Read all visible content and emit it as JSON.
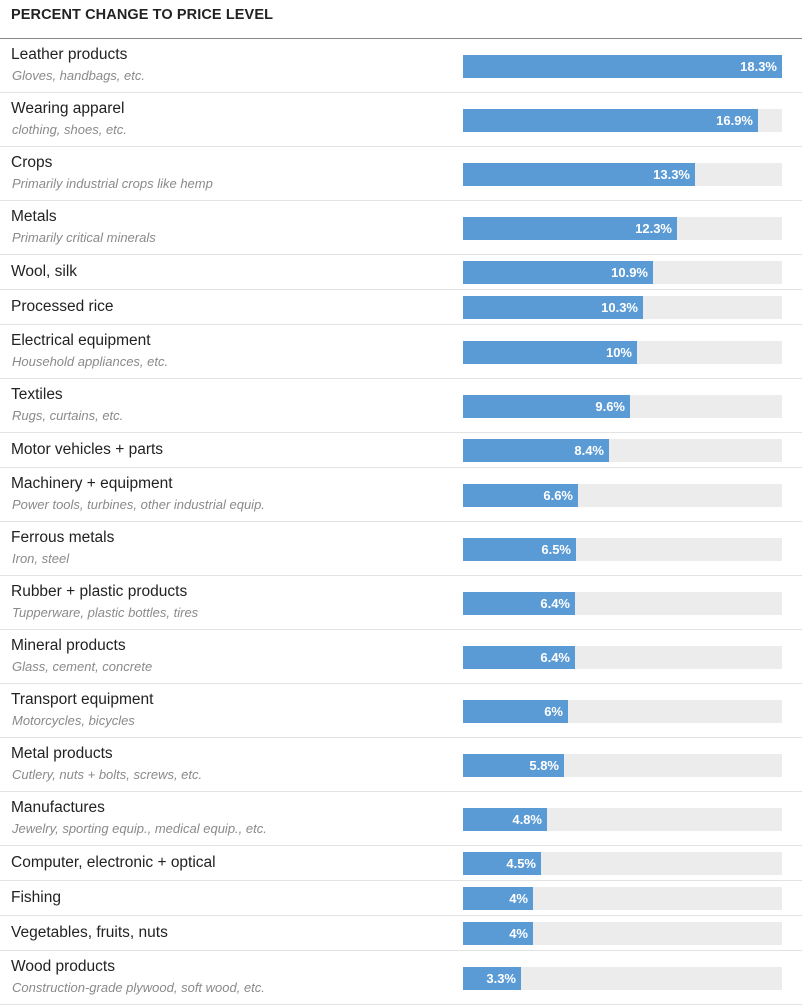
{
  "chart_data": {
    "type": "bar",
    "orientation": "horizontal",
    "title": "PERCENT CHANGE TO PRICE LEVEL",
    "xlim": [
      0,
      18.3
    ],
    "unit": "%",
    "categories": [
      {
        "label": "Leather products",
        "sublabel": "Gloves, handbags, etc.",
        "value": 18.3,
        "display": "18.3%"
      },
      {
        "label": "Wearing apparel",
        "sublabel": "clothing, shoes, etc.",
        "value": 16.9,
        "display": "16.9%"
      },
      {
        "label": "Crops",
        "sublabel": "Primarily industrial crops like hemp",
        "value": 13.3,
        "display": "13.3%"
      },
      {
        "label": "Metals",
        "sublabel": "Primarily critical minerals",
        "value": 12.3,
        "display": "12.3%"
      },
      {
        "label": "Wool, silk",
        "sublabel": "",
        "value": 10.9,
        "display": "10.9%"
      },
      {
        "label": "Processed rice",
        "sublabel": "",
        "value": 10.3,
        "display": "10.3%"
      },
      {
        "label": "Electrical equipment",
        "sublabel": "Household appliances, etc.",
        "value": 10,
        "display": "10%"
      },
      {
        "label": "Textiles",
        "sublabel": "Rugs, curtains, etc.",
        "value": 9.6,
        "display": "9.6%"
      },
      {
        "label": "Motor vehicles + parts",
        "sublabel": "",
        "value": 8.4,
        "display": "8.4%"
      },
      {
        "label": "Machinery + equipment",
        "sublabel": "Power tools, turbines, other industrial equip.",
        "value": 6.6,
        "display": "6.6%"
      },
      {
        "label": "Ferrous metals",
        "sublabel": "Iron, steel",
        "value": 6.5,
        "display": "6.5%"
      },
      {
        "label": "Rubber + plastic products",
        "sublabel": "Tupperware, plastic bottles, tires",
        "value": 6.4,
        "display": "6.4%"
      },
      {
        "label": "Mineral products",
        "sublabel": "Glass, cement, concrete",
        "value": 6.4,
        "display": "6.4%"
      },
      {
        "label": "Transport equipment",
        "sublabel": "Motorcycles, bicycles",
        "value": 6,
        "display": "6%"
      },
      {
        "label": "Metal products",
        "sublabel": "Cutlery, nuts + bolts, screws, etc.",
        "value": 5.8,
        "display": "5.8%"
      },
      {
        "label": "Manufactures",
        "sublabel": "Jewelry, sporting equip., medical equip., etc.",
        "value": 4.8,
        "display": "4.8%"
      },
      {
        "label": "Computer, electronic + optical",
        "sublabel": "",
        "value": 4.5,
        "display": "4.5%"
      },
      {
        "label": "Fishing",
        "sublabel": "",
        "value": 4,
        "display": "4%"
      },
      {
        "label": "Vegetables, fruits, nuts",
        "sublabel": "",
        "value": 4,
        "display": "4%"
      },
      {
        "label": "Wood products",
        "sublabel": "Construction-grade plywood, soft wood, etc.",
        "value": 3.3,
        "display": "3.3%"
      }
    ],
    "colors": {
      "bar": "#5b9bd5",
      "track": "#ececec",
      "value_text": "#ffffff"
    }
  }
}
